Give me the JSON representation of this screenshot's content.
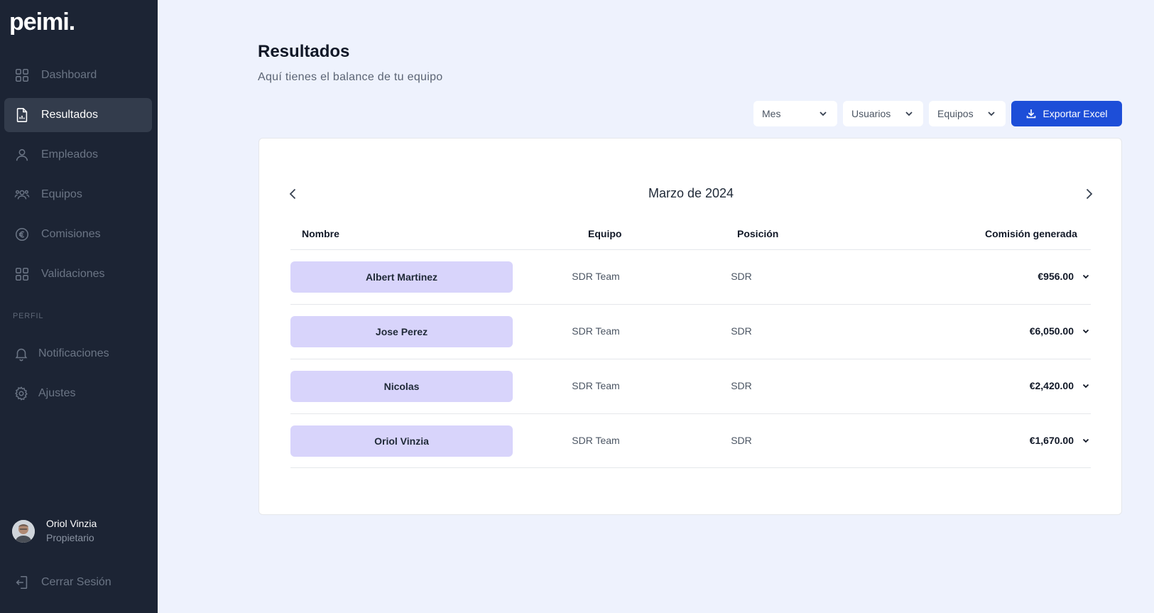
{
  "brand": {
    "logo": "peimi."
  },
  "sidebar": {
    "items": [
      {
        "label": "Dashboard",
        "icon": "grid-icon"
      },
      {
        "label": "Resultados",
        "icon": "document-chart-icon",
        "active": true
      },
      {
        "label": "Empleados",
        "icon": "user-icon"
      },
      {
        "label": "Equipos",
        "icon": "users-group-icon"
      },
      {
        "label": "Comisiones",
        "icon": "euro-icon"
      },
      {
        "label": "Validaciones",
        "icon": "grid-icon"
      }
    ],
    "profile_section_label": "PERFIL",
    "profile_items": [
      {
        "label": "Notificaciones",
        "icon": "bell-icon"
      },
      {
        "label": "Ajustes",
        "icon": "gear-icon"
      }
    ],
    "user": {
      "name": "Oriol Vinzia",
      "role": "Propietario"
    },
    "logout_label": "Cerrar Sesión"
  },
  "header": {
    "title": "Resultados",
    "subtitle": "Aquí tienes el balance de tu equipo"
  },
  "filters": {
    "period": "Mes",
    "users": "Usuarios",
    "teams": "Equipos",
    "export_label": "Exportar Excel"
  },
  "table": {
    "month": "Marzo de 2024",
    "columns": {
      "name": "Nombre",
      "team": "Equipo",
      "position": "Posición",
      "commission": "Comisión generada"
    },
    "rows": [
      {
        "name": "Albert Martinez",
        "team": "SDR Team",
        "position": "SDR",
        "commission": "€956.00"
      },
      {
        "name": "Jose Perez",
        "team": "SDR Team",
        "position": "SDR",
        "commission": "€6,050.00"
      },
      {
        "name": "Nicolas",
        "team": "SDR Team",
        "position": "SDR",
        "commission": "€2,420.00"
      },
      {
        "name": "Oriol Vinzia",
        "team": "SDR Team",
        "position": "SDR",
        "commission": "€1,670.00"
      }
    ]
  },
  "colors": {
    "sidebar_bg": "#1c2434",
    "page_bg": "#eef2fd",
    "accent": "#1d4ed8",
    "name_pill": "#d8d4fb"
  }
}
